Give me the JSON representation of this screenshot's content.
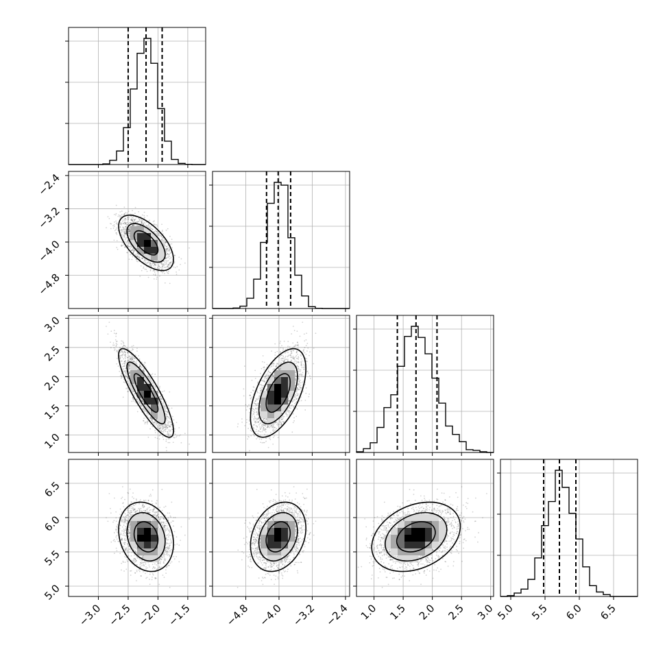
{
  "chart_data": {
    "type": "corner",
    "parameters": [
      {
        "name": "",
        "range": [
          -3.5,
          -1.2
        ],
        "ticks": [
          -3.0,
          -2.5,
          -2.0,
          -1.5
        ],
        "tick_labels": [
          "−3.0",
          "−2.5",
          "−2.0",
          "−1.5"
        ],
        "quantiles": [
          -2.5,
          -2.2,
          -1.93
        ],
        "mean": -2.2,
        "sd": 0.2
      },
      {
        "name": "",
        "range": [
          -5.6,
          -2.3
        ],
        "ticks": [
          -4.8,
          -4.0,
          -3.2,
          -2.4
        ],
        "tick_labels": [
          "−4.8",
          "−4.0",
          "−3.2",
          "−2.4"
        ],
        "quantiles": [
          -4.3,
          -4.02,
          -3.72
        ],
        "mean": -4.02,
        "sd": 0.29
      },
      {
        "name": "",
        "range": [
          0.7,
          3.05
        ],
        "ticks": [
          1.0,
          1.5,
          2.0,
          2.5,
          3.0
        ],
        "tick_labels": [
          "1.0",
          "1.5",
          "2.0",
          "2.5",
          "3.0"
        ],
        "quantiles": [
          1.4,
          1.72,
          2.08
        ],
        "mean": 1.72,
        "sd": 0.33
      },
      {
        "name": "",
        "range": [
          4.85,
          6.85
        ],
        "ticks": [
          5.0,
          5.5,
          6.0,
          6.5
        ],
        "tick_labels": [
          "5.0",
          "5.5",
          "6.0",
          "6.5"
        ],
        "quantiles": [
          5.48,
          5.71,
          5.95
        ],
        "mean": 5.72,
        "sd": 0.22
      }
    ],
    "correlations": [
      [
        1,
        -0.6,
        -0.85,
        -0.2
      ],
      [
        -0.6,
        1,
        0.55,
        0.25
      ],
      [
        -0.85,
        0.55,
        1,
        0.3
      ],
      [
        -0.2,
        0.25,
        0.3,
        1
      ]
    ],
    "quantile_line_style": "dashed",
    "contour_levels": 3,
    "grid": true,
    "colors": {
      "line": "#000000",
      "points": "#000000",
      "grid": "#b0b0b0"
    }
  }
}
